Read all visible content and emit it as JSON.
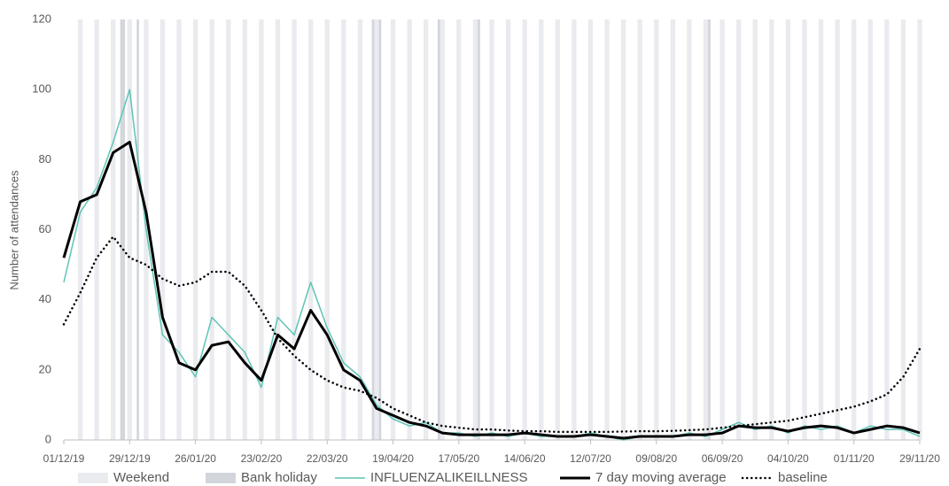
{
  "chart_data": {
    "type": "line",
    "y_label": "Number of attendances",
    "x": [
      0,
      7,
      14,
      21,
      28,
      35,
      42,
      49,
      56,
      63,
      70,
      77,
      84,
      91,
      98,
      105,
      112,
      119,
      126,
      133,
      140,
      147,
      154,
      161,
      168,
      175,
      182,
      189,
      196,
      203,
      210,
      217,
      224,
      231,
      238,
      245,
      252,
      259,
      266,
      273,
      280,
      287,
      294,
      301,
      308,
      315,
      322,
      329,
      336,
      343,
      350,
      357,
      364
    ],
    "xlim": [
      0,
      364
    ],
    "xticks": [
      {
        "value": 0,
        "label": "01/12/19"
      },
      {
        "value": 28,
        "label": "29/12/19"
      },
      {
        "value": 56,
        "label": "26/01/20"
      },
      {
        "value": 84,
        "label": "23/02/20"
      },
      {
        "value": 112,
        "label": "22/03/20"
      },
      {
        "value": 140,
        "label": "19/04/20"
      },
      {
        "value": 168,
        "label": "17/05/20"
      },
      {
        "value": 196,
        "label": "14/06/20"
      },
      {
        "value": 224,
        "label": "12/07/20"
      },
      {
        "value": 252,
        "label": "09/08/20"
      },
      {
        "value": 280,
        "label": "06/09/20"
      },
      {
        "value": 308,
        "label": "04/10/20"
      },
      {
        "value": 336,
        "label": "01/11/20"
      },
      {
        "value": 364,
        "label": "29/11/20"
      }
    ],
    "ylim": [
      0,
      120
    ],
    "yticks": [
      0,
      20,
      40,
      60,
      80,
      100,
      120
    ],
    "grid": false,
    "bands": [
      {
        "name": "Weekend",
        "color": "#e9ebef",
        "x": [
          6,
          13,
          20,
          27,
          34,
          41,
          48,
          55,
          62,
          69,
          76,
          83,
          90,
          97,
          104,
          111,
          118,
          125,
          132,
          139,
          146,
          153,
          160,
          167,
          174,
          181,
          188,
          195,
          202,
          209,
          216,
          223,
          230,
          237,
          244,
          251,
          258,
          265,
          272,
          279,
          286,
          293,
          300,
          307,
          314,
          321,
          328,
          335,
          342,
          349,
          356,
          363
        ]
      },
      {
        "name": "Bank holiday",
        "color": "#d2d5db",
        "x": [
          24,
          25,
          31,
          131,
          134,
          159,
          176,
          274
        ]
      }
    ],
    "series": [
      {
        "name": "INFLUENZALIKEILLNESS",
        "color": "#5ec4b6",
        "style": "solid",
        "values": [
          45,
          65,
          72,
          85,
          100,
          60,
          30,
          25,
          18,
          35,
          30,
          25,
          15,
          35,
          30,
          45,
          32,
          22,
          18,
          10,
          6,
          4,
          5,
          2,
          2,
          1,
          2,
          1,
          2,
          1,
          1,
          1,
          2,
          1,
          0,
          1,
          1,
          1,
          2,
          1,
          3,
          5,
          3,
          4,
          2,
          4,
          3,
          4,
          2,
          4,
          3,
          3,
          1
        ]
      },
      {
        "name": "7 day moving average",
        "color": "#000000",
        "style": "solid",
        "values": [
          52,
          68,
          70,
          82,
          85,
          65,
          35,
          22,
          20,
          27,
          28,
          22,
          17,
          30,
          26,
          37,
          30,
          20,
          17,
          9,
          7,
          5,
          4,
          2,
          1.5,
          1.5,
          1.5,
          1.5,
          2,
          1.5,
          1,
          1,
          1.5,
          1,
          0.5,
          1,
          1,
          1,
          1.5,
          1.5,
          2,
          4,
          3.5,
          3.5,
          2.5,
          3.5,
          4,
          3.5,
          2,
          3,
          4,
          3.5,
          2
        ]
      },
      {
        "name": "baseline",
        "color": "#000000",
        "style": "dotted",
        "values": [
          33,
          42,
          52,
          58,
          52,
          50,
          46,
          44,
          45,
          48,
          48,
          44,
          37,
          29,
          24,
          20,
          17,
          15,
          14,
          12,
          9,
          7,
          5,
          4,
          3.5,
          3,
          3,
          2.7,
          2.5,
          2.5,
          2.3,
          2.3,
          2.3,
          2.3,
          2.4,
          2.5,
          2.5,
          2.6,
          2.8,
          3,
          3.5,
          4,
          4.5,
          5,
          5.5,
          6.5,
          7.5,
          8.5,
          9.5,
          11,
          13,
          18,
          26
        ]
      }
    ]
  }
}
